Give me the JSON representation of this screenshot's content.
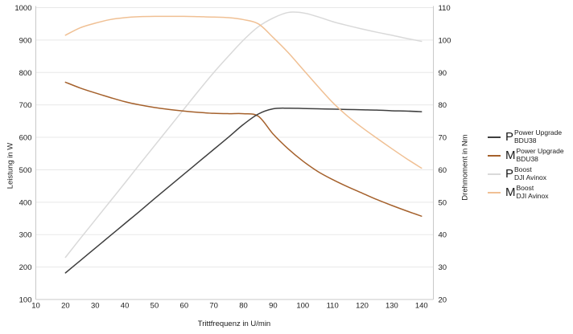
{
  "chart_data": {
    "type": "line",
    "title": "",
    "xlabel": "Trittfrequenz in U/min",
    "ylabel_left": "Leistung in W",
    "ylabel_right": "Drehmoment in Nm",
    "grid": "horizontal",
    "legend_position": "right",
    "x_range": [
      10,
      144
    ],
    "y_left_range": [
      100,
      1000
    ],
    "y_right_range": [
      20,
      110
    ],
    "x_ticks": [
      10,
      20,
      30,
      40,
      50,
      60,
      70,
      80,
      90,
      100,
      110,
      120,
      130,
      140
    ],
    "y_left_ticks": [
      100,
      200,
      300,
      400,
      500,
      600,
      700,
      800,
      900,
      1000
    ],
    "y_right_ticks": [
      20,
      30,
      40,
      50,
      60,
      70,
      80,
      90,
      100,
      110
    ],
    "x": [
      20,
      25,
      30,
      35,
      40,
      45,
      50,
      55,
      60,
      65,
      70,
      75,
      80,
      85,
      90,
      95,
      100,
      105,
      110,
      115,
      120,
      125,
      130,
      135,
      140
    ],
    "series": [
      {
        "id": "p-power-upgrade-bdu38",
        "symbol": "P",
        "sup": "Power Upgrade",
        "sub": "BDU38",
        "axis": "left",
        "unit": "W",
        "color": "#3e3e3e",
        "values": [
          182,
          220,
          258,
          296,
          334,
          372,
          411,
          449,
          487,
          525,
          563,
          601,
          640,
          672,
          688,
          690,
          689,
          688,
          687,
          686,
          685,
          684,
          682,
          681,
          679
        ]
      },
      {
        "id": "m-power-upgrade-bdu38",
        "symbol": "M",
        "sup": "Power Upgrade",
        "sub": "BDU38",
        "axis": "right",
        "unit": "Nm",
        "color": "#a5612c",
        "values": [
          87,
          85.2,
          83.7,
          82.3,
          81,
          80,
          79.2,
          78.6,
          78.1,
          77.7,
          77.4,
          77.3,
          77.3,
          76.5,
          71,
          66.5,
          62.7,
          59.5,
          57,
          54.8,
          52.8,
          50.8,
          49,
          47.3,
          45.7
        ]
      },
      {
        "id": "p-boost-dji-avinox",
        "symbol": "P",
        "sup": "Boost",
        "sub": "DJI Avinox",
        "axis": "left",
        "unit": "W",
        "color": "#d9d9d9",
        "values": [
          230,
          288,
          345,
          402,
          459,
          517,
          574,
          631,
          688,
          745,
          800,
          851,
          900,
          941,
          968,
          985,
          984,
          972,
          957,
          945,
          934,
          924,
          915,
          905,
          896
        ]
      },
      {
        "id": "m-boost-dji-avinox",
        "symbol": "M",
        "sup": "Boost",
        "sub": "DJI Avinox",
        "axis": "right",
        "unit": "Nm",
        "color": "#f0c094",
        "values": [
          101.5,
          103.8,
          105.2,
          106.3,
          106.9,
          107.2,
          107.3,
          107.3,
          107.3,
          107.2,
          107.1,
          106.9,
          106.3,
          105,
          100.8,
          96.2,
          91,
          85.8,
          80.8,
          76.6,
          73,
          69.7,
          66.5,
          63.4,
          60.5
        ]
      }
    ],
    "style": {
      "grid_color": "#e8e8e8",
      "axis_color": "#c9c9c9",
      "text_color": "#1a1a1a"
    }
  }
}
